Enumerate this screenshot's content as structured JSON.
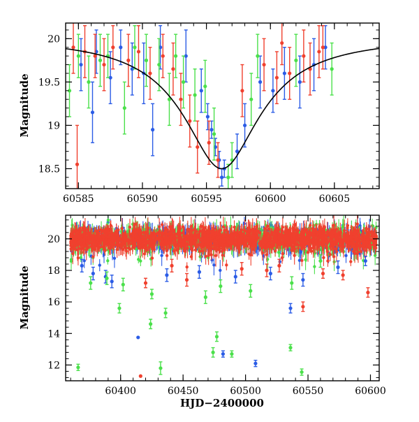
{
  "chart_data": [
    {
      "type": "scatter",
      "panel": "top",
      "xlabel": "",
      "ylabel": "Magnitude",
      "xlim": [
        60584,
        60608.5
      ],
      "ylim": [
        20.18,
        18.27
      ],
      "y_inverted": true,
      "x_ticks": [
        60585,
        60590,
        60595,
        60600,
        60605
      ],
      "x_tick_labels": [
        "60585",
        "60590",
        "60595",
        "60600",
        "60605"
      ],
      "y_ticks": [
        18.5,
        19,
        19.5,
        20
      ],
      "y_tick_labels": [
        "18.5",
        "19",
        "19.5",
        "20"
      ],
      "series_colors": [
        "#2b5ce6",
        "#4be04b",
        "#f0402e"
      ],
      "model_curve": {
        "color": "#000000",
        "baseline": 20.02,
        "peak_mag": 18.5,
        "peak_x": 60596.2,
        "width_days": 2.6
      },
      "series": [
        {
          "color": "#2b5ce6",
          "points": [
            {
              "x": 60585.2,
              "y": 19.7,
              "err": 0.3
            },
            {
              "x": 60586.1,
              "y": 19.15,
              "err": 0.35
            },
            {
              "x": 60586.4,
              "y": 19.85,
              "err": 0.25
            },
            {
              "x": 60587.5,
              "y": 19.55,
              "err": 0.3
            },
            {
              "x": 60588.3,
              "y": 19.9,
              "err": 0.2
            },
            {
              "x": 60589.2,
              "y": 19.65,
              "err": 0.3
            },
            {
              "x": 60590.1,
              "y": 19.6,
              "err": 0.35
            },
            {
              "x": 60590.8,
              "y": 18.95,
              "err": 0.3
            },
            {
              "x": 60591.4,
              "y": 19.9,
              "err": 0.25
            },
            {
              "x": 60593.4,
              "y": 19.8,
              "err": 0.3
            },
            {
              "x": 60594.6,
              "y": 19.4,
              "err": 0.25
            },
            {
              "x": 60595.1,
              "y": 19.1,
              "err": 0.15
            },
            {
              "x": 60595.4,
              "y": 18.95,
              "err": 0.1
            },
            {
              "x": 60595.7,
              "y": 18.75,
              "err": 0.1
            },
            {
              "x": 60596.0,
              "y": 18.6,
              "err": 0.1
            },
            {
              "x": 60596.2,
              "y": 18.4,
              "err": 0.1
            },
            {
              "x": 60596.4,
              "y": 18.5,
              "err": 0.1
            },
            {
              "x": 60597.4,
              "y": 18.7,
              "err": 0.2
            },
            {
              "x": 60598.0,
              "y": 19.0,
              "err": 0.25
            },
            {
              "x": 60599.2,
              "y": 19.5,
              "err": 0.3
            },
            {
              "x": 60600.2,
              "y": 19.4,
              "err": 0.25
            },
            {
              "x": 60601.1,
              "y": 19.6,
              "err": 0.3
            },
            {
              "x": 60602.3,
              "y": 19.5,
              "err": 0.3
            },
            {
              "x": 60603.4,
              "y": 19.7,
              "err": 0.3
            },
            {
              "x": 60604.3,
              "y": 19.9,
              "err": 0.25
            }
          ]
        },
        {
          "color": "#4be04b",
          "points": [
            {
              "x": 60584.3,
              "y": 19.4,
              "err": 0.3
            },
            {
              "x": 60585.0,
              "y": 19.8,
              "err": 0.25
            },
            {
              "x": 60585.8,
              "y": 19.5,
              "err": 0.3
            },
            {
              "x": 60586.7,
              "y": 19.75,
              "err": 0.3
            },
            {
              "x": 60587.3,
              "y": 19.8,
              "err": 0.25
            },
            {
              "x": 60588.6,
              "y": 19.2,
              "err": 0.3
            },
            {
              "x": 60589.4,
              "y": 19.9,
              "err": 0.25
            },
            {
              "x": 60590.3,
              "y": 19.75,
              "err": 0.3
            },
            {
              "x": 60591.3,
              "y": 19.7,
              "err": 0.3
            },
            {
              "x": 60592.1,
              "y": 19.3,
              "err": 0.3
            },
            {
              "x": 60592.6,
              "y": 19.8,
              "err": 0.25
            },
            {
              "x": 60593.2,
              "y": 19.5,
              "err": 0.3
            },
            {
              "x": 60594.1,
              "y": 19.35,
              "err": 0.3
            },
            {
              "x": 60594.9,
              "y": 19.45,
              "err": 0.3
            },
            {
              "x": 60595.6,
              "y": 18.9,
              "err": 0.3
            },
            {
              "x": 60596.7,
              "y": 18.4,
              "err": 0.15
            },
            {
              "x": 60597.0,
              "y": 18.6,
              "err": 0.2
            },
            {
              "x": 60598.5,
              "y": 19.3,
              "err": 0.3
            },
            {
              "x": 60599.0,
              "y": 19.8,
              "err": 0.25
            },
            {
              "x": 60602.0,
              "y": 19.75,
              "err": 0.3
            },
            {
              "x": 60604.8,
              "y": 19.65,
              "err": 0.3
            }
          ]
        },
        {
          "color": "#f0402e",
          "points": [
            {
              "x": 60584.6,
              "y": 19.9,
              "err": 0.3
            },
            {
              "x": 60584.9,
              "y": 18.55,
              "err": 0.45
            },
            {
              "x": 60585.5,
              "y": 19.85,
              "err": 0.3
            },
            {
              "x": 60586.3,
              "y": 19.8,
              "err": 0.25
            },
            {
              "x": 60587.0,
              "y": 19.7,
              "err": 0.3
            },
            {
              "x": 60587.7,
              "y": 19.9,
              "err": 0.25
            },
            {
              "x": 60588.9,
              "y": 19.75,
              "err": 0.3
            },
            {
              "x": 60589.7,
              "y": 19.85,
              "err": 0.3
            },
            {
              "x": 60590.6,
              "y": 19.6,
              "err": 0.3
            },
            {
              "x": 60591.6,
              "y": 19.8,
              "err": 0.25
            },
            {
              "x": 60592.4,
              "y": 19.65,
              "err": 0.3
            },
            {
              "x": 60593.0,
              "y": 19.3,
              "err": 0.3
            },
            {
              "x": 60593.7,
              "y": 19.05,
              "err": 0.3
            },
            {
              "x": 60594.3,
              "y": 18.75,
              "err": 0.3
            },
            {
              "x": 60595.2,
              "y": 18.8,
              "err": 0.25
            },
            {
              "x": 60595.9,
              "y": 18.6,
              "err": 0.2
            },
            {
              "x": 60597.8,
              "y": 19.4,
              "err": 0.3
            },
            {
              "x": 60599.5,
              "y": 19.7,
              "err": 0.3
            },
            {
              "x": 60600.5,
              "y": 19.55,
              "err": 0.3
            },
            {
              "x": 60600.9,
              "y": 19.95,
              "err": 0.25
            },
            {
              "x": 60601.5,
              "y": 19.6,
              "err": 0.3
            },
            {
              "x": 60602.6,
              "y": 19.8,
              "err": 0.3
            },
            {
              "x": 60603.1,
              "y": 19.65,
              "err": 0.3
            },
            {
              "x": 60603.8,
              "y": 19.85,
              "err": 0.3
            },
            {
              "x": 60604.1,
              "y": 19.9,
              "err": 0.25
            }
          ]
        }
      ]
    },
    {
      "type": "scatter",
      "panel": "bottom",
      "xlabel": "HJD−2400000",
      "ylabel": "Magnitude",
      "xlim": [
        60356,
        60607
      ],
      "ylim": [
        21.5,
        11.0
      ],
      "y_inverted": true,
      "x_ticks": [
        60400,
        60450,
        60500,
        60550,
        60600
      ],
      "x_tick_labels": [
        "60400",
        "60450",
        "60500",
        "60550",
        "60600"
      ],
      "y_ticks": [
        12,
        14,
        16,
        18,
        20
      ],
      "y_tick_labels": [
        "12",
        "14",
        "16",
        "18",
        "20"
      ],
      "series_colors": [
        "#2b5ce6",
        "#4be04b",
        "#f0402e"
      ],
      "dense_band": {
        "center_mag": 20.0,
        "spread": 0.8,
        "x_range": [
          60360,
          60605
        ]
      },
      "series": [
        {
          "color": "#2b5ce6",
          "outliers": [
            {
              "x": 60369,
              "y": 18.3,
              "err": 0.4
            },
            {
              "x": 60378,
              "y": 17.8,
              "err": 0.4
            },
            {
              "x": 60388,
              "y": 17.6,
              "err": 0.4
            },
            {
              "x": 60393,
              "y": 17.3,
              "err": 0.4
            },
            {
              "x": 60414,
              "y": 13.75,
              "err": 0
            },
            {
              "x": 60437,
              "y": 17.7,
              "err": 0.4
            },
            {
              "x": 60463,
              "y": 17.9,
              "err": 0.4
            },
            {
              "x": 60482,
              "y": 12.7,
              "err": 0.2
            },
            {
              "x": 60492,
              "y": 17.6,
              "err": 0.4
            },
            {
              "x": 60508,
              "y": 12.1,
              "err": 0.2
            },
            {
              "x": 60520,
              "y": 17.8,
              "err": 0.4
            },
            {
              "x": 60536,
              "y": 15.6,
              "err": 0.3
            },
            {
              "x": 60546,
              "y": 17.4,
              "err": 0.4
            },
            {
              "x": 60574,
              "y": 18.2,
              "err": 0.4
            },
            {
              "x": 60596,
              "y": 18.6,
              "err": 0.3
            }
          ]
        },
        {
          "color": "#4be04b",
          "outliers": [
            {
              "x": 60366,
              "y": 11.85,
              "err": 0.2
            },
            {
              "x": 60376,
              "y": 17.2,
              "err": 0.4
            },
            {
              "x": 60389,
              "y": 17.5,
              "err": 0.4
            },
            {
              "x": 60399,
              "y": 15.6,
              "err": 0.3
            },
            {
              "x": 60402,
              "y": 17.1,
              "err": 0.4
            },
            {
              "x": 60424,
              "y": 14.6,
              "err": 0.3
            },
            {
              "x": 60425,
              "y": 16.5,
              "err": 0.3
            },
            {
              "x": 60432,
              "y": 11.8,
              "err": 0.4
            },
            {
              "x": 60436,
              "y": 15.3,
              "err": 0.3
            },
            {
              "x": 60468,
              "y": 16.3,
              "err": 0.4
            },
            {
              "x": 60474,
              "y": 12.8,
              "err": 0.3
            },
            {
              "x": 60477,
              "y": 13.8,
              "err": 0.3
            },
            {
              "x": 60480,
              "y": 17.0,
              "err": 0.4
            },
            {
              "x": 60489,
              "y": 12.7,
              "err": 0.2
            },
            {
              "x": 60504,
              "y": 16.7,
              "err": 0.4
            },
            {
              "x": 60536,
              "y": 13.1,
              "err": 0.2
            },
            {
              "x": 60537,
              "y": 17.2,
              "err": 0.4
            },
            {
              "x": 60545,
              "y": 11.55,
              "err": 0.2
            },
            {
              "x": 60560,
              "y": 18.6,
              "err": 0.4
            }
          ]
        },
        {
          "color": "#f0402e",
          "outliers": [
            {
              "x": 60416,
              "y": 11.3,
              "err": 0
            },
            {
              "x": 60420,
              "y": 17.2,
              "err": 0.3
            },
            {
              "x": 60441,
              "y": 18.3,
              "err": 0.4
            },
            {
              "x": 60453,
              "y": 17.4,
              "err": 0.4
            },
            {
              "x": 60497,
              "y": 18.1,
              "err": 0.4
            },
            {
              "x": 60517,
              "y": 18.0,
              "err": 0.4
            },
            {
              "x": 60527,
              "y": 18.3,
              "err": 0.4
            },
            {
              "x": 60546,
              "y": 15.7,
              "err": 0.3
            },
            {
              "x": 60562,
              "y": 17.8,
              "err": 0.3
            },
            {
              "x": 60578,
              "y": 17.7,
              "err": 0.3
            },
            {
              "x": 60598,
              "y": 16.6,
              "err": 0.3
            }
          ]
        }
      ]
    }
  ]
}
